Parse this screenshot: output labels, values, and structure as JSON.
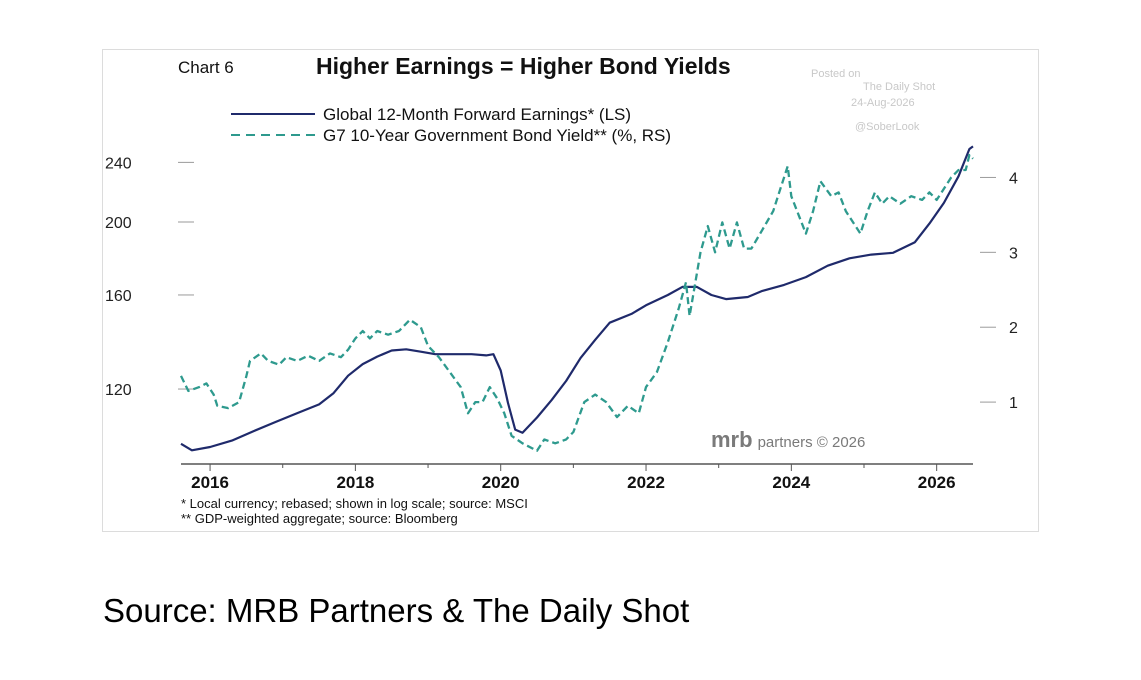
{
  "chart_data": {
    "type": "line",
    "chart_label": "Chart 6",
    "title": "Higher Earnings = Higher Bond Yields",
    "watermark": [
      "Posted on",
      "The Daily Shot",
      "24-Aug-2026",
      "@SoberLook"
    ],
    "brand": "mrb partners © 2026",
    "x_ticks": [
      "2016",
      "2018",
      "2020",
      "2022",
      "2024",
      "2026"
    ],
    "x_range": [
      2015.6,
      2026.5
    ],
    "left_axis": {
      "ticks": [
        "120",
        "160",
        "200",
        "240"
      ],
      "scale": "log",
      "range": [
        96,
        257
      ]
    },
    "right_axis": {
      "ticks": [
        "1",
        "2",
        "3",
        "4"
      ],
      "range": [
        0.2,
        4.5
      ]
    },
    "footnotes": [
      "*  Local currency; rebased; shown in log scale; source: MSCI",
      "** GDP-weighted aggregate; source: Bloomberg"
    ],
    "series": [
      {
        "name": "Global 12-Month Forward Earnings* (LS)",
        "axis": "left",
        "color": "#1f2a6b",
        "style": "solid",
        "points": [
          [
            2015.6,
            101.5
          ],
          [
            2015.75,
            99.5
          ],
          [
            2016.0,
            100.5
          ],
          [
            2016.3,
            102.5
          ],
          [
            2016.6,
            105.5
          ],
          [
            2016.9,
            108.5
          ],
          [
            2017.2,
            111.5
          ],
          [
            2017.5,
            114.5
          ],
          [
            2017.7,
            118.5
          ],
          [
            2017.9,
            125
          ],
          [
            2018.1,
            129.5
          ],
          [
            2018.3,
            132.5
          ],
          [
            2018.5,
            135
          ],
          [
            2018.7,
            135.5
          ],
          [
            2018.9,
            134.5
          ],
          [
            2019.1,
            133.5
          ],
          [
            2019.3,
            133.5
          ],
          [
            2019.6,
            133.5
          ],
          [
            2019.8,
            133
          ],
          [
            2019.9,
            133.5
          ],
          [
            2020.0,
            127
          ],
          [
            2020.1,
            115
          ],
          [
            2020.2,
            106
          ],
          [
            2020.3,
            105
          ],
          [
            2020.5,
            110
          ],
          [
            2020.7,
            116
          ],
          [
            2020.9,
            123
          ],
          [
            2021.1,
            132
          ],
          [
            2021.3,
            139.5
          ],
          [
            2021.5,
            147
          ],
          [
            2021.8,
            151
          ],
          [
            2022.0,
            155
          ],
          [
            2022.3,
            160
          ],
          [
            2022.5,
            164
          ],
          [
            2022.7,
            164
          ],
          [
            2022.9,
            160
          ],
          [
            2023.1,
            158
          ],
          [
            2023.4,
            159
          ],
          [
            2023.6,
            162
          ],
          [
            2023.9,
            165
          ],
          [
            2024.2,
            169
          ],
          [
            2024.5,
            175
          ],
          [
            2024.8,
            179
          ],
          [
            2025.1,
            181
          ],
          [
            2025.4,
            182
          ],
          [
            2025.7,
            188
          ],
          [
            2025.9,
            199
          ],
          [
            2026.1,
            212
          ],
          [
            2026.3,
            230
          ],
          [
            2026.45,
            250
          ],
          [
            2026.5,
            252
          ]
        ]
      },
      {
        "name": "G7 10-Year Government Bond Yield** (%, RS)",
        "axis": "right",
        "color": "#2e9a8e",
        "style": "dashed",
        "points": [
          [
            2015.6,
            1.35
          ],
          [
            2015.7,
            1.15
          ],
          [
            2015.85,
            1.2
          ],
          [
            2015.95,
            1.25
          ],
          [
            2016.05,
            1.1
          ],
          [
            2016.1,
            0.95
          ],
          [
            2016.25,
            0.92
          ],
          [
            2016.4,
            1.0
          ],
          [
            2016.5,
            1.35
          ],
          [
            2016.55,
            1.55
          ],
          [
            2016.7,
            1.65
          ],
          [
            2016.8,
            1.55
          ],
          [
            2016.95,
            1.5
          ],
          [
            2017.05,
            1.6
          ],
          [
            2017.2,
            1.55
          ],
          [
            2017.35,
            1.62
          ],
          [
            2017.5,
            1.55
          ],
          [
            2017.65,
            1.65
          ],
          [
            2017.8,
            1.6
          ],
          [
            2017.9,
            1.7
          ],
          [
            2018.0,
            1.85
          ],
          [
            2018.1,
            1.95
          ],
          [
            2018.2,
            1.85
          ],
          [
            2018.3,
            1.95
          ],
          [
            2018.45,
            1.9
          ],
          [
            2018.6,
            1.95
          ],
          [
            2018.75,
            2.1
          ],
          [
            2018.9,
            2.0
          ],
          [
            2019.0,
            1.75
          ],
          [
            2019.15,
            1.6
          ],
          [
            2019.3,
            1.4
          ],
          [
            2019.45,
            1.2
          ],
          [
            2019.55,
            0.85
          ],
          [
            2019.65,
            1.0
          ],
          [
            2019.75,
            1.0
          ],
          [
            2019.85,
            1.2
          ],
          [
            2019.95,
            1.05
          ],
          [
            2020.05,
            0.85
          ],
          [
            2020.15,
            0.55
          ],
          [
            2020.3,
            0.45
          ],
          [
            2020.5,
            0.35
          ],
          [
            2020.6,
            0.5
          ],
          [
            2020.75,
            0.45
          ],
          [
            2020.9,
            0.5
          ],
          [
            2021.0,
            0.6
          ],
          [
            2021.15,
            1.0
          ],
          [
            2021.3,
            1.1
          ],
          [
            2021.45,
            1.0
          ],
          [
            2021.6,
            0.8
          ],
          [
            2021.75,
            0.95
          ],
          [
            2021.9,
            0.85
          ],
          [
            2022.0,
            1.2
          ],
          [
            2022.15,
            1.4
          ],
          [
            2022.3,
            1.8
          ],
          [
            2022.45,
            2.25
          ],
          [
            2022.55,
            2.6
          ],
          [
            2022.6,
            2.15
          ],
          [
            2022.75,
            3.0
          ],
          [
            2022.85,
            3.35
          ],
          [
            2022.95,
            3.0
          ],
          [
            2023.05,
            3.4
          ],
          [
            2023.15,
            3.05
          ],
          [
            2023.25,
            3.4
          ],
          [
            2023.35,
            3.05
          ],
          [
            2023.45,
            3.05
          ],
          [
            2023.6,
            3.3
          ],
          [
            2023.75,
            3.55
          ],
          [
            2023.85,
            3.85
          ],
          [
            2023.95,
            4.15
          ],
          [
            2024.0,
            3.75
          ],
          [
            2024.1,
            3.5
          ],
          [
            2024.2,
            3.25
          ],
          [
            2024.3,
            3.55
          ],
          [
            2024.4,
            3.95
          ],
          [
            2024.55,
            3.75
          ],
          [
            2024.65,
            3.8
          ],
          [
            2024.75,
            3.55
          ],
          [
            2024.85,
            3.4
          ],
          [
            2024.95,
            3.25
          ],
          [
            2025.05,
            3.55
          ],
          [
            2025.15,
            3.8
          ],
          [
            2025.25,
            3.65
          ],
          [
            2025.35,
            3.75
          ],
          [
            2025.5,
            3.65
          ],
          [
            2025.65,
            3.75
          ],
          [
            2025.8,
            3.7
          ],
          [
            2025.9,
            3.8
          ],
          [
            2026.0,
            3.7
          ],
          [
            2026.1,
            3.85
          ],
          [
            2026.2,
            4.0
          ],
          [
            2026.3,
            4.1
          ],
          [
            2026.4,
            4.1
          ],
          [
            2026.45,
            4.3
          ],
          [
            2026.5,
            4.25
          ]
        ]
      }
    ]
  },
  "source": "Source: MRB Partners & The Daily Shot"
}
